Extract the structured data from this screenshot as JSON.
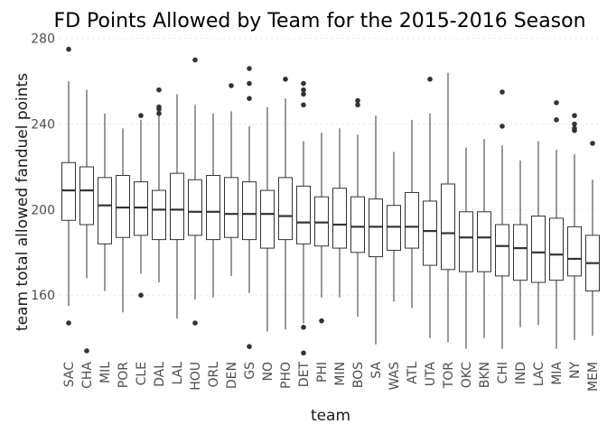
{
  "chart_data": {
    "type": "box",
    "title": "FD Points Allowed by Team for the 2015-2016 Season",
    "xlabel": "team",
    "ylabel": "team total allowed fanduel points",
    "ylim": [
      131,
      282
    ],
    "yticks": [
      160,
      200,
      240,
      280
    ],
    "grid": true,
    "legend": "none",
    "colors": {
      "box_stroke": "#333333",
      "box_fill": "#ffffff",
      "grid": "#ebebeb"
    },
    "categories": [
      "SAC",
      "CHA",
      "MIL",
      "POR",
      "CLE",
      "DAL",
      "LAL",
      "HOU",
      "ORL",
      "DEN",
      "GS",
      "NO",
      "PHO",
      "DET",
      "PHI",
      "MIN",
      "BOS",
      "SA",
      "WAS",
      "ATL",
      "UTA",
      "TOR",
      "OKC",
      "BKN",
      "CHI",
      "IND",
      "LAC",
      "MIA",
      "NY",
      "MEM"
    ],
    "boxes": [
      {
        "team": "SAC",
        "min": 155,
        "q1": 195,
        "median": 209,
        "q3": 222,
        "max": 260,
        "outliers": [
          275,
          147
        ]
      },
      {
        "team": "CHA",
        "min": 168,
        "q1": 193,
        "median": 209,
        "q3": 220,
        "max": 256,
        "outliers": [
          134
        ]
      },
      {
        "team": "MIL",
        "min": 162,
        "q1": 184,
        "median": 202,
        "q3": 215,
        "max": 245,
        "outliers": []
      },
      {
        "team": "POR",
        "min": 152,
        "q1": 187,
        "median": 201,
        "q3": 216,
        "max": 238,
        "outliers": []
      },
      {
        "team": "CLE",
        "min": 170,
        "q1": 188,
        "median": 201,
        "q3": 213,
        "max": 242,
        "outliers": [
          244,
          160
        ]
      },
      {
        "team": "DAL",
        "min": 166,
        "q1": 186,
        "median": 200,
        "q3": 209,
        "max": 245,
        "outliers": [
          256,
          248,
          247,
          245
        ]
      },
      {
        "team": "LAL",
        "min": 149,
        "q1": 186,
        "median": 200,
        "q3": 217,
        "max": 254,
        "outliers": []
      },
      {
        "team": "HOU",
        "min": 158,
        "q1": 188,
        "median": 199,
        "q3": 214,
        "max": 249,
        "outliers": [
          270,
          147
        ]
      },
      {
        "team": "ORL",
        "min": 159,
        "q1": 186,
        "median": 199,
        "q3": 216,
        "max": 245,
        "outliers": []
      },
      {
        "team": "DEN",
        "min": 169,
        "q1": 187,
        "median": 198,
        "q3": 215,
        "max": 246,
        "outliers": [
          258
        ]
      },
      {
        "team": "GS",
        "min": 161,
        "q1": 186,
        "median": 198,
        "q3": 213,
        "max": 239,
        "outliers": [
          266,
          259,
          252,
          136
        ]
      },
      {
        "team": "NO",
        "min": 143,
        "q1": 182,
        "median": 198,
        "q3": 209,
        "max": 248,
        "outliers": []
      },
      {
        "team": "PHO",
        "min": 144,
        "q1": 186,
        "median": 197,
        "q3": 215,
        "max": 252,
        "outliers": [
          261
        ]
      },
      {
        "team": "DET",
        "min": 147,
        "q1": 184,
        "median": 194,
        "q3": 211,
        "max": 232,
        "outliers": [
          259,
          256,
          254,
          249,
          145,
          133
        ]
      },
      {
        "team": "PHI",
        "min": 159,
        "q1": 183,
        "median": 194,
        "q3": 206,
        "max": 236,
        "outliers": [
          148
        ]
      },
      {
        "team": "MIN",
        "min": 159,
        "q1": 182,
        "median": 193,
        "q3": 210,
        "max": 238,
        "outliers": []
      },
      {
        "team": "BOS",
        "min": 150,
        "q1": 180,
        "median": 192,
        "q3": 206,
        "max": 235,
        "outliers": [
          251,
          249
        ]
      },
      {
        "team": "SA",
        "min": 137,
        "q1": 178,
        "median": 192,
        "q3": 205,
        "max": 244,
        "outliers": []
      },
      {
        "team": "WAS",
        "min": 157,
        "q1": 181,
        "median": 192,
        "q3": 202,
        "max": 227,
        "outliers": []
      },
      {
        "team": "ATL",
        "min": 154,
        "q1": 182,
        "median": 192,
        "q3": 208,
        "max": 242,
        "outliers": []
      },
      {
        "team": "UTA",
        "min": 140,
        "q1": 174,
        "median": 190,
        "q3": 204,
        "max": 245,
        "outliers": [
          261
        ]
      },
      {
        "team": "TOR",
        "min": 138,
        "q1": 172,
        "median": 189,
        "q3": 212,
        "max": 264,
        "outliers": []
      },
      {
        "team": "OKC",
        "min": 135,
        "q1": 171,
        "median": 187,
        "q3": 199,
        "max": 229,
        "outliers": []
      },
      {
        "team": "BKN",
        "min": 140,
        "q1": 171,
        "median": 187,
        "q3": 199,
        "max": 233,
        "outliers": []
      },
      {
        "team": "CHI",
        "min": 135,
        "q1": 169,
        "median": 183,
        "q3": 193,
        "max": 230,
        "outliers": [
          255,
          239
        ]
      },
      {
        "team": "IND",
        "min": 145,
        "q1": 167,
        "median": 182,
        "q3": 193,
        "max": 223,
        "outliers": []
      },
      {
        "team": "LAC",
        "min": 146,
        "q1": 166,
        "median": 180,
        "q3": 197,
        "max": 232,
        "outliers": []
      },
      {
        "team": "MIA",
        "min": 135,
        "q1": 167,
        "median": 179,
        "q3": 196,
        "max": 228,
        "outliers": [
          250,
          242
        ]
      },
      {
        "team": "NY",
        "min": 139,
        "q1": 169,
        "median": 177,
        "q3": 192,
        "max": 226,
        "outliers": [
          244,
          240,
          238,
          237
        ]
      },
      {
        "team": "MEM",
        "min": 141,
        "q1": 162,
        "median": 175,
        "q3": 188,
        "max": 214,
        "outliers": [
          231
        ]
      }
    ]
  }
}
